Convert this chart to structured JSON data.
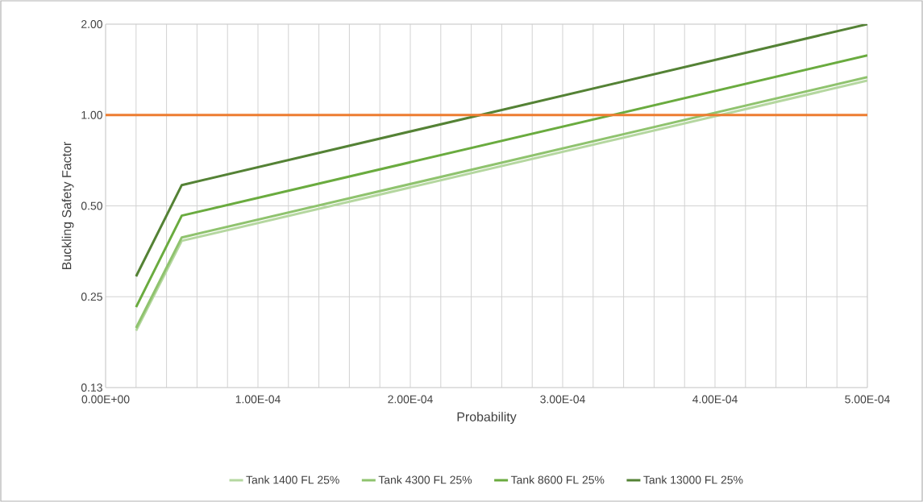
{
  "chart_data": {
    "type": "line",
    "xlabel": "Probability",
    "ylabel": "Buckling Safety Factor",
    "x": [
      2e-05,
      5e-05,
      0.0005
    ],
    "series": [
      {
        "name": "Tank 1400 FL 25%",
        "color": "#b5d7a0",
        "values": [
          0.193,
          0.383,
          1.3
        ]
      },
      {
        "name": "Tank 4300 FL 25%",
        "color": "#8fc36e",
        "values": [
          0.197,
          0.393,
          1.335
        ]
      },
      {
        "name": "Tank 8600 FL 25%",
        "color": "#6aab3f",
        "values": [
          0.231,
          0.464,
          1.576
        ]
      },
      {
        "name": "Tank 13000 FL 25%",
        "color": "#548235",
        "values": [
          0.292,
          0.586,
          2.0
        ]
      }
    ],
    "xlim": [
      0,
      0.0005
    ],
    "xticks": [
      {
        "value": 0,
        "label": "0.00E+00"
      },
      {
        "value": 0.0001,
        "label": "1.00E-04"
      },
      {
        "value": 0.0002,
        "label": "2.00E-04"
      },
      {
        "value": 0.0003,
        "label": "3.00E-04"
      },
      {
        "value": 0.0004,
        "label": "4.00E-04"
      },
      {
        "value": 0.0005,
        "label": "5.00E-04"
      }
    ],
    "ylim": [
      0.125,
      2
    ],
    "yticks": [
      {
        "value": 0.125,
        "label": "0.13"
      },
      {
        "value": 0.25,
        "label": "0.25"
      },
      {
        "value": 0.5,
        "label": "0.50"
      },
      {
        "value": 1,
        "label": "1.00"
      },
      {
        "value": 2,
        "label": "2.00"
      }
    ],
    "log": "y",
    "ref_lines": [
      {
        "axis": "y",
        "value": 1,
        "color": "#ed7d31"
      }
    ],
    "grid": true,
    "legend": "bottom",
    "marker": "none",
    "line_style": "solid"
  }
}
